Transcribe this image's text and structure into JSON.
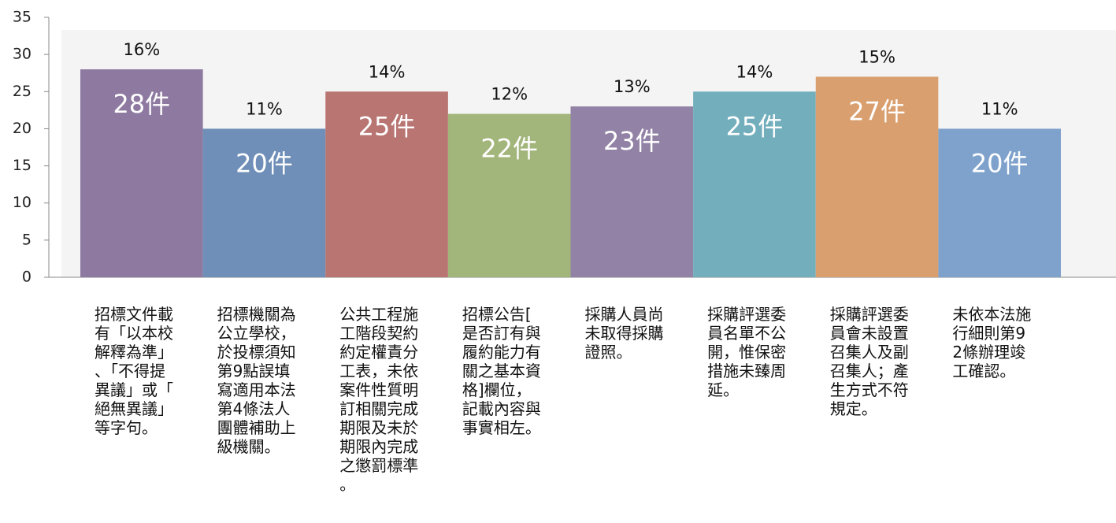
{
  "chart_data": {
    "type": "bar",
    "categories": [
      "招標文件載有「以本校解釋為準」、「不得提異議」或「絕無異議」等字句。",
      "招標機關為公立學校，於投標須知第9點誤填寫適用本法第4條法人團體補助上級機關。",
      "公共工程施工階段契約約定權責分工表，未依案件性質明訂相關完成期限及未於期限內完成之懲罰標準。",
      "招標公告[是否訂有與履約能力有關之基本資格]欄位，記載內容與事實相左。",
      "採購人員尚未取得採購證照。",
      "採購評選委員名單不公開，惟保密措施未臻周延。",
      "採購評選委員會未設置召集人及副召集人；產生方式不符規定。",
      "未依本法施行細則第92條辦理竣工確認。"
    ],
    "values": [
      28,
      20,
      25,
      22,
      23,
      25,
      27,
      20
    ],
    "value_labels": [
      "28件",
      "20件",
      "25件",
      "22件",
      "23件",
      "25件",
      "27件",
      "20件"
    ],
    "percentage_labels": [
      "16%",
      "11%",
      "14%",
      "12%",
      "13%",
      "14%",
      "15%",
      "11%"
    ],
    "colors": [
      "#8e7aa0",
      "#6f8fb8",
      "#b87572",
      "#a2b57a",
      "#9282a6",
      "#72aebc",
      "#d99f6e",
      "#7fa2cc"
    ],
    "ylim": [
      0,
      35
    ],
    "yticks": [
      0,
      5,
      10,
      15,
      20,
      25,
      30,
      35
    ]
  }
}
